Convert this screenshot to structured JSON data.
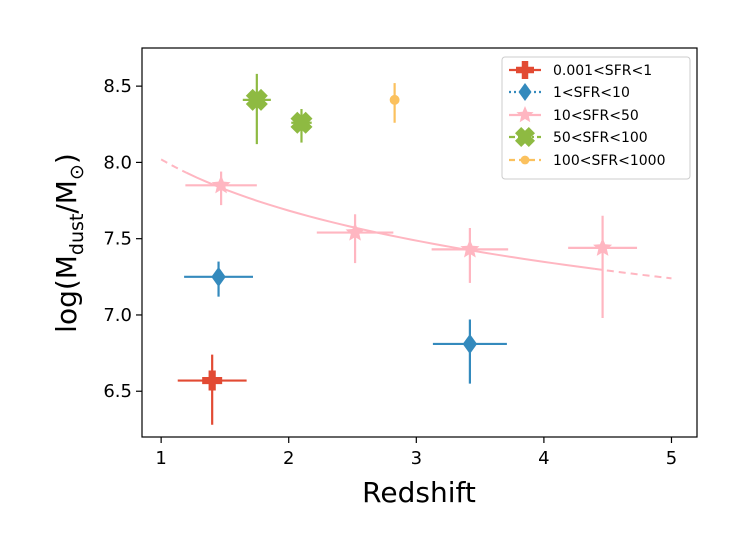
{
  "chart_data": {
    "type": "scatter",
    "xlabel": "Redshift",
    "ylabel": {
      "main": "log(M",
      "sub1": "dust",
      "mid": "/M",
      "sub2": "⊙",
      "end": ")"
    },
    "xlim": [
      0.85,
      5.2
    ],
    "ylim": [
      6.2,
      8.75
    ],
    "xticks": [
      1,
      2,
      3,
      4,
      5
    ],
    "yticks": [
      6.5,
      7.0,
      7.5,
      8.0,
      8.5
    ],
    "xtick_labels": [
      "1",
      "2",
      "3",
      "4",
      "5"
    ],
    "ytick_labels": [
      "6.5",
      "7.0",
      "7.5",
      "8.0",
      "8.5"
    ],
    "legend_position": "top-right",
    "series": [
      {
        "name": "0.001<SFR<1",
        "color": "#e24a33",
        "marker": "plus",
        "linestyle": "none",
        "points": [
          {
            "x": 1.4,
            "y": 6.57,
            "xerr": 0.27,
            "yerr_lo": 0.29,
            "yerr_hi": 0.17
          }
        ]
      },
      {
        "name": "1<SFR<10",
        "color": "#348abd",
        "marker": "diamond",
        "linestyle": "dotted",
        "points": [
          {
            "x": 1.45,
            "y": 7.25,
            "xerr": 0.27,
            "yerr_lo": 0.13,
            "yerr_hi": 0.1
          },
          {
            "x": 3.42,
            "y": 6.81,
            "xerr": 0.29,
            "yerr_lo": 0.26,
            "yerr_hi": 0.16
          }
        ]
      },
      {
        "name": "10<SFR<50",
        "color": "#ffb6c1",
        "marker": "star",
        "linestyle": "solid",
        "points": [
          {
            "x": 1.47,
            "y": 7.85,
            "xerr": 0.28,
            "yerr_lo": 0.13,
            "yerr_hi": 0.09
          },
          {
            "x": 2.52,
            "y": 7.54,
            "xerr": 0.3,
            "yerr_lo": 0.2,
            "yerr_hi": 0.12
          },
          {
            "x": 3.42,
            "y": 7.43,
            "xerr": 0.3,
            "yerr_lo": 0.22,
            "yerr_hi": 0.14
          },
          {
            "x": 4.46,
            "y": 7.44,
            "xerr": 0.27,
            "yerr_lo": 0.46,
            "yerr_hi": 0.21
          }
        ],
        "fit": {
          "solid_x": [
            1.2,
            4.4
          ],
          "dashed_x1": [
            1.0,
            1.2
          ],
          "dashed_x2": [
            4.4,
            5.0
          ],
          "y_at": {
            "1.0": 8.02,
            "5.0": 7.24
          }
        }
      },
      {
        "name": "50<SFR<100",
        "color": "#8eba42",
        "marker": "x-filled",
        "linestyle": "dashdot",
        "points": [
          {
            "x": 1.75,
            "y": 8.41,
            "xerr": 0.11,
            "yerr_lo": 0.29,
            "yerr_hi": 0.17
          },
          {
            "x": 2.1,
            "y": 8.26,
            "xerr": 0.08,
            "yerr_lo": 0.13,
            "yerr_hi": 0.09
          }
        ]
      },
      {
        "name": "100<SFR<1000",
        "color": "#fbc15e",
        "marker": "circle",
        "linestyle": "dashed",
        "points": [
          {
            "x": 2.83,
            "y": 8.41,
            "xerr": 0.0,
            "yerr_lo": 0.15,
            "yerr_hi": 0.11
          }
        ]
      }
    ]
  }
}
